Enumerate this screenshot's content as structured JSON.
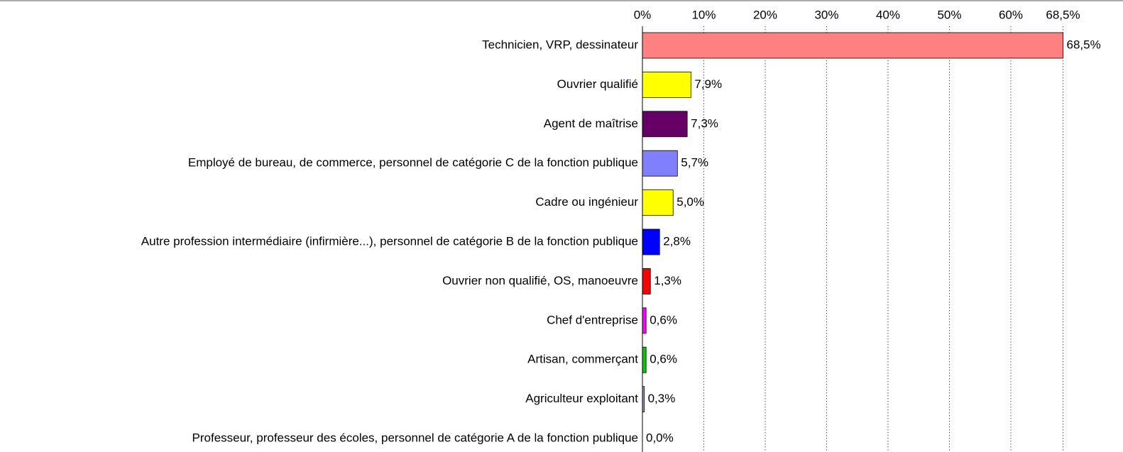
{
  "chart_data": {
    "type": "bar",
    "orientation": "horizontal",
    "categories": [
      "Technicien, VRP, dessinateur",
      "Ouvrier qualifié",
      "Agent de maîtrise",
      "Employé de bureau, de commerce, personnel de catégorie C de la fonction publique",
      "Cadre ou ingénieur",
      "Autre profession intermédiaire (infirmière...), personnel de catégorie B de la fonction publique",
      "Ouvrier non qualifié, OS, manoeuvre",
      "Chef d'entreprise",
      "Artisan, commerçant",
      "Agriculteur exploitant",
      "Professeur, professeur des écoles, personnel de catégorie A de la fonction publique"
    ],
    "values": [
      68.5,
      7.9,
      7.3,
      5.7,
      5.0,
      2.8,
      1.3,
      0.6,
      0.6,
      0.3,
      0.0
    ],
    "value_labels": [
      "68,5%",
      "7,9%",
      "7,3%",
      "5,7%",
      "5,0%",
      "2,8%",
      "1,3%",
      "0,6%",
      "0,6%",
      "0,3%",
      "0,0%"
    ],
    "colors": [
      "#ff8080",
      "#ffff00",
      "#660066",
      "#8080ff",
      "#ffff00",
      "#0000ff",
      "#ff0000",
      "#ff00ff",
      "#00cc00",
      "#9999cc",
      "#808080"
    ],
    "xlim": [
      0,
      68.5
    ],
    "xticks": [
      {
        "value": 0,
        "label": "0%"
      },
      {
        "value": 10,
        "label": "10%"
      },
      {
        "value": 20,
        "label": "20%"
      },
      {
        "value": 30,
        "label": "30%"
      },
      {
        "value": 40,
        "label": "40%"
      },
      {
        "value": 50,
        "label": "50%"
      },
      {
        "value": 60,
        "label": "60%"
      },
      {
        "value": 68.5,
        "label": "68,5%"
      }
    ],
    "grid": true
  }
}
